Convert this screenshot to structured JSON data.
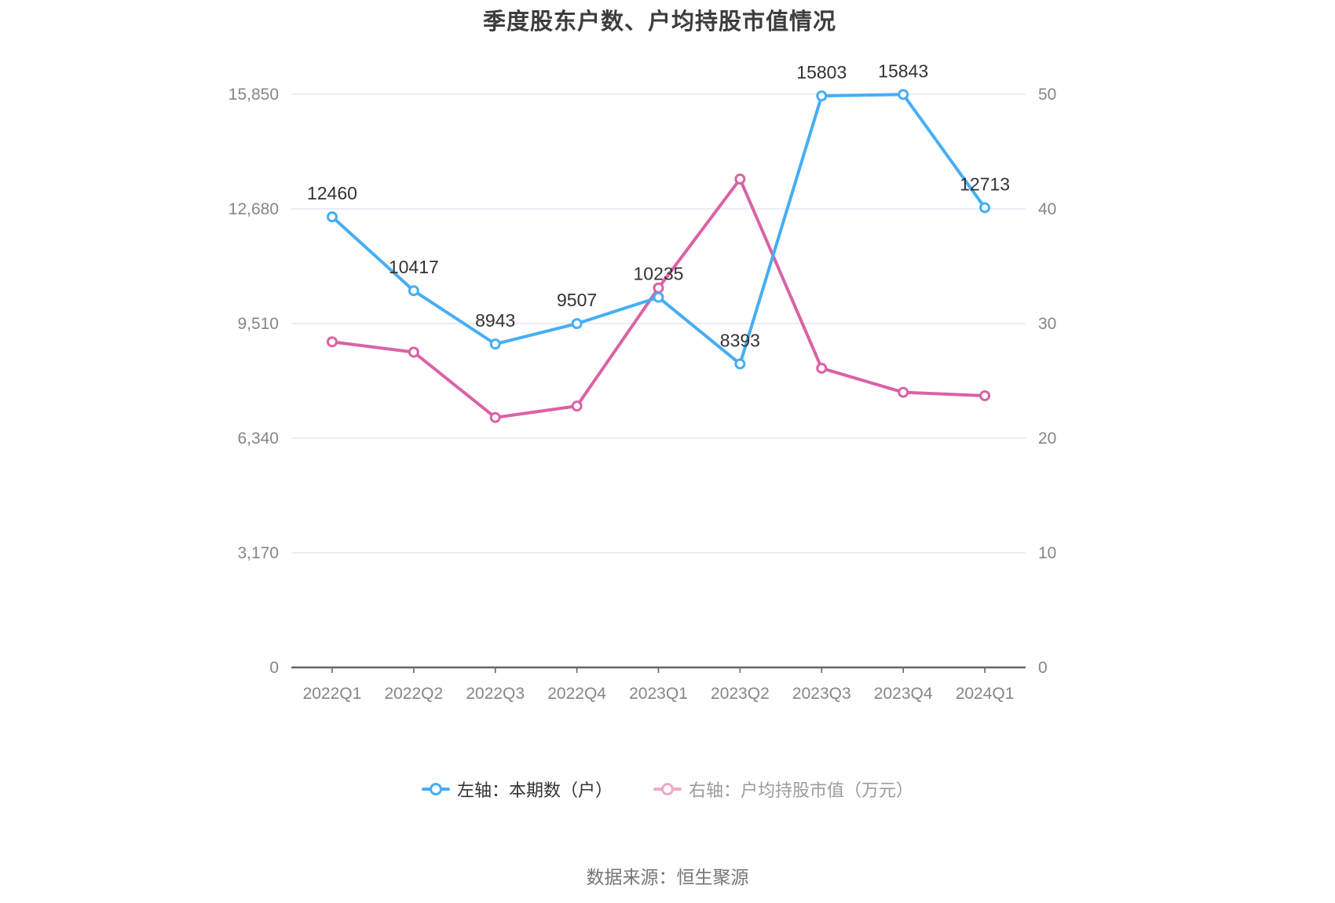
{
  "title": "季度股东户数、户均持股市值情况",
  "source_text": "数据来源：恒生聚源",
  "chart_data": {
    "type": "line",
    "title": "季度股东户数、户均持股市值情况",
    "categories": [
      "2022Q1",
      "2022Q2",
      "2022Q3",
      "2022Q4",
      "2023Q1",
      "2023Q2",
      "2023Q3",
      "2023Q4",
      "2024Q1"
    ],
    "series": [
      {
        "name": "左轴：本期数（户）",
        "axis": "left",
        "color": "#45AEF5",
        "legend_color": "#45AEF5",
        "legend_text_color": "#333333",
        "show_labels": true,
        "values": [
          12460,
          10417,
          8943,
          9507,
          10235,
          8393,
          15803,
          15843,
          12713
        ]
      },
      {
        "name": "右轴：户均持股市值（万元）",
        "axis": "right",
        "color": "#DA62A5",
        "legend_color": "#F2A6CC",
        "legend_text_color": "#9B9B9B",
        "show_labels": false,
        "values": [
          28.4,
          27.5,
          21.8,
          22.8,
          33.1,
          42.6,
          26.1,
          24.0,
          23.7
        ]
      }
    ],
    "left_axis": {
      "min": 0,
      "max": 15850,
      "tick_labels": [
        "0",
        "3,170",
        "6,340",
        "9,510",
        "12,680",
        "15,850"
      ]
    },
    "right_axis": {
      "min": 0,
      "max": 50,
      "tick_labels": [
        "0",
        "10",
        "20",
        "30",
        "40",
        "50"
      ]
    },
    "grid": true,
    "grid_color": "#E2E7F3",
    "axis_line_color": "#666666",
    "tick_label_color": "#868686",
    "data_label_color": "#333333",
    "legend_position": "bottom"
  }
}
